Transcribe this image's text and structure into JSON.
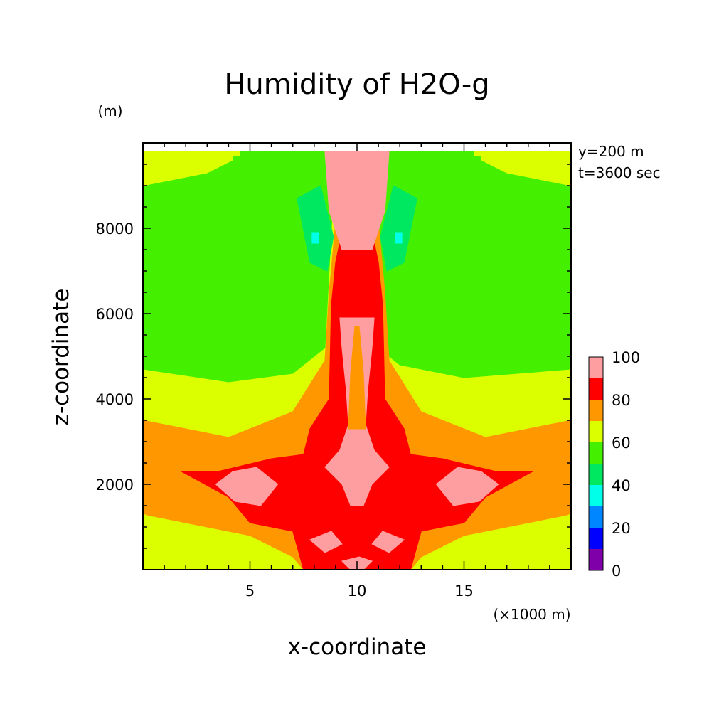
{
  "chart_data": {
    "type": "heatmap",
    "title": "Humidity of H2O-g",
    "xlabel": "x-coordinate",
    "ylabel": "z-coordinate",
    "x_unit": "(×1000 m)",
    "y_unit": "(m)",
    "xlim": [
      0,
      20
    ],
    "ylim": [
      0,
      10000
    ],
    "x_ticks": [
      5,
      10,
      15
    ],
    "y_ticks": [
      2000,
      4000,
      6000,
      8000
    ],
    "annotations": [
      "y=200 m",
      "t=3600 sec"
    ],
    "colorbar": {
      "ticks": [
        0,
        20,
        40,
        60,
        80,
        100
      ],
      "levels": [
        {
          "min": 0,
          "max": 10,
          "color": "#7f00a8"
        },
        {
          "min": 10,
          "max": 20,
          "color": "#0000ff"
        },
        {
          "min": 20,
          "max": 30,
          "color": "#0086ff"
        },
        {
          "min": 30,
          "max": 40,
          "color": "#00ffe8"
        },
        {
          "min": 40,
          "max": 50,
          "color": "#00e860"
        },
        {
          "min": 50,
          "max": 60,
          "color": "#44f000"
        },
        {
          "min": 60,
          "max": 70,
          "color": "#dcff00"
        },
        {
          "min": 70,
          "max": 80,
          "color": "#ff9800"
        },
        {
          "min": 80,
          "max": 90,
          "color": "#ff0000"
        },
        {
          "min": 90,
          "max": 100,
          "color": "#ff9ea0"
        }
      ]
    },
    "regions": [
      {
        "level": 65,
        "polygon": [
          [
            0,
            0
          ],
          [
            20,
            0
          ],
          [
            20,
            9800
          ],
          [
            0,
            9800
          ]
        ]
      },
      {
        "level": 55,
        "polygon": [
          [
            0,
            4700
          ],
          [
            4,
            4400
          ],
          [
            7,
            4600
          ],
          [
            8.5,
            5200
          ],
          [
            9,
            9800
          ],
          [
            0,
            9800
          ]
        ]
      },
      {
        "level": 55,
        "polygon": [
          [
            11,
            5200
          ],
          [
            12,
            4800
          ],
          [
            15,
            4500
          ],
          [
            20,
            4700
          ],
          [
            20,
            9800
          ],
          [
            11,
            9800
          ]
        ]
      },
      {
        "level": 65,
        "polygon": [
          [
            0,
            9800
          ],
          [
            0,
            9000
          ],
          [
            3,
            9300
          ],
          [
            4.2,
            9600
          ],
          [
            4.2,
            9800
          ]
        ]
      },
      {
        "level": 65,
        "polygon": [
          [
            20,
            9800
          ],
          [
            20,
            9000
          ],
          [
            17,
            9300
          ],
          [
            15.8,
            9600
          ],
          [
            15.8,
            9800
          ]
        ]
      },
      {
        "level": 65,
        "polygon": [
          [
            0,
            9700
          ],
          [
            4.5,
            9700
          ],
          [
            4.5,
            9800
          ],
          [
            0,
            9800
          ]
        ]
      },
      {
        "level": 65,
        "polygon": [
          [
            20,
            9700
          ],
          [
            15.5,
            9700
          ],
          [
            15.5,
            9800
          ],
          [
            20,
            9800
          ]
        ]
      },
      {
        "level": 45,
        "polygon": [
          [
            7.2,
            8700
          ],
          [
            7.8,
            7200
          ],
          [
            8.6,
            7000
          ],
          [
            8.9,
            7800
          ],
          [
            8.3,
            9000
          ]
        ]
      },
      {
        "level": 45,
        "polygon": [
          [
            12.8,
            8700
          ],
          [
            12.2,
            7200
          ],
          [
            11.4,
            7000
          ],
          [
            11.1,
            7800
          ],
          [
            11.7,
            9000
          ]
        ]
      },
      {
        "level": 35,
        "polygon": [
          [
            7.9,
            7900
          ],
          [
            8.2,
            7900
          ],
          [
            8.2,
            7650
          ],
          [
            7.9,
            7650
          ]
        ]
      },
      {
        "level": 35,
        "polygon": [
          [
            11.8,
            7900
          ],
          [
            12.1,
            7900
          ],
          [
            12.1,
            7650
          ],
          [
            11.8,
            7650
          ]
        ]
      },
      {
        "level": 75,
        "polygon": [
          [
            0,
            3500
          ],
          [
            4,
            3100
          ],
          [
            7,
            3700
          ],
          [
            8.5,
            4900
          ],
          [
            8.7,
            6500
          ],
          [
            9.3,
            9800
          ],
          [
            10.7,
            9800
          ],
          [
            11.3,
            6500
          ],
          [
            11.5,
            4900
          ],
          [
            13,
            3700
          ],
          [
            16,
            3100
          ],
          [
            20,
            3500
          ],
          [
            20,
            1300
          ],
          [
            15,
            800
          ],
          [
            13,
            300
          ],
          [
            12.5,
            0
          ],
          [
            7.5,
            0
          ],
          [
            7,
            300
          ],
          [
            5,
            800
          ],
          [
            0,
            1300
          ]
        ]
      },
      {
        "level": 65,
        "polygon": [
          [
            0,
            1300
          ],
          [
            3,
            800
          ],
          [
            5,
            500
          ],
          [
            5.5,
            0
          ],
          [
            0,
            0
          ]
        ]
      },
      {
        "level": 65,
        "polygon": [
          [
            20,
            1300
          ],
          [
            17,
            800
          ],
          [
            15,
            500
          ],
          [
            14.5,
            0
          ],
          [
            20,
            0
          ]
        ]
      },
      {
        "level": 85,
        "polygon": [
          [
            9.8,
            9800
          ],
          [
            9.5,
            8400
          ],
          [
            9.0,
            7200
          ],
          [
            8.8,
            6200
          ],
          [
            8.7,
            4000
          ],
          [
            7.8,
            3300
          ],
          [
            7.5,
            2700
          ],
          [
            6,
            2600
          ],
          [
            3.5,
            2300
          ],
          [
            1.8,
            2300
          ],
          [
            4,
            1700
          ],
          [
            5,
            1100
          ],
          [
            7,
            900
          ],
          [
            7.5,
            0
          ],
          [
            12.5,
            0
          ],
          [
            13,
            900
          ],
          [
            15,
            1100
          ],
          [
            16,
            1700
          ],
          [
            18.2,
            2300
          ],
          [
            16.5,
            2300
          ],
          [
            14,
            2600
          ],
          [
            12.5,
            2700
          ],
          [
            12.2,
            3300
          ],
          [
            11.3,
            4000
          ],
          [
            11.2,
            6200
          ],
          [
            11.0,
            7200
          ],
          [
            10.5,
            8400
          ],
          [
            10.2,
            9800
          ]
        ]
      },
      {
        "level": 95,
        "polygon": [
          [
            8.5,
            9800
          ],
          [
            8.7,
            8400
          ],
          [
            9.3,
            7500
          ],
          [
            10.7,
            7500
          ],
          [
            11.3,
            8400
          ],
          [
            11.5,
            9800
          ]
        ]
      },
      {
        "level": 100,
        "polygon": [
          [
            8.9,
            9700
          ],
          [
            9.2,
            8400
          ],
          [
            9.8,
            7600
          ],
          [
            10.2,
            7600
          ],
          [
            10.8,
            8400
          ],
          [
            11.1,
            9700
          ]
        ]
      },
      {
        "level": 95,
        "polygon": [
          [
            9.2,
            5900
          ],
          [
            9.3,
            5200
          ],
          [
            9.5,
            4200
          ],
          [
            9.6,
            3400
          ],
          [
            9.2,
            2800
          ],
          [
            8.5,
            2400
          ],
          [
            9.3,
            2000
          ],
          [
            9.7,
            1500
          ],
          [
            10.3,
            1500
          ],
          [
            10.7,
            2000
          ],
          [
            11.5,
            2400
          ],
          [
            10.8,
            2800
          ],
          [
            10.4,
            3400
          ],
          [
            10.5,
            4200
          ],
          [
            10.7,
            5200
          ],
          [
            10.8,
            5900
          ]
        ]
      },
      {
        "level": 75,
        "polygon": [
          [
            9.9,
            5700
          ],
          [
            9.7,
            4600
          ],
          [
            9.6,
            3300
          ],
          [
            10.4,
            3300
          ],
          [
            10.3,
            4600
          ],
          [
            10.1,
            5700
          ]
        ]
      },
      {
        "level": 95,
        "polygon": [
          [
            3.4,
            2000
          ],
          [
            4.3,
            1600
          ],
          [
            5.5,
            1500
          ],
          [
            6.3,
            2000
          ],
          [
            5.3,
            2400
          ],
          [
            4.2,
            2300
          ]
        ]
      },
      {
        "level": 95,
        "polygon": [
          [
            16.6,
            2000
          ],
          [
            15.7,
            1600
          ],
          [
            14.5,
            1500
          ],
          [
            13.7,
            2000
          ],
          [
            14.7,
            2400
          ],
          [
            15.8,
            2300
          ]
        ]
      },
      {
        "level": 95,
        "polygon": [
          [
            7.8,
            700
          ],
          [
            8.5,
            400
          ],
          [
            9.3,
            600
          ],
          [
            8.8,
            900
          ]
        ]
      },
      {
        "level": 95,
        "polygon": [
          [
            12.2,
            700
          ],
          [
            11.5,
            400
          ],
          [
            10.7,
            600
          ],
          [
            11.2,
            900
          ]
        ]
      },
      {
        "level": 95,
        "polygon": [
          [
            9.3,
            200
          ],
          [
            9.7,
            0
          ],
          [
            10.3,
            0
          ],
          [
            10.7,
            200
          ],
          [
            10.1,
            300
          ]
        ]
      }
    ]
  }
}
